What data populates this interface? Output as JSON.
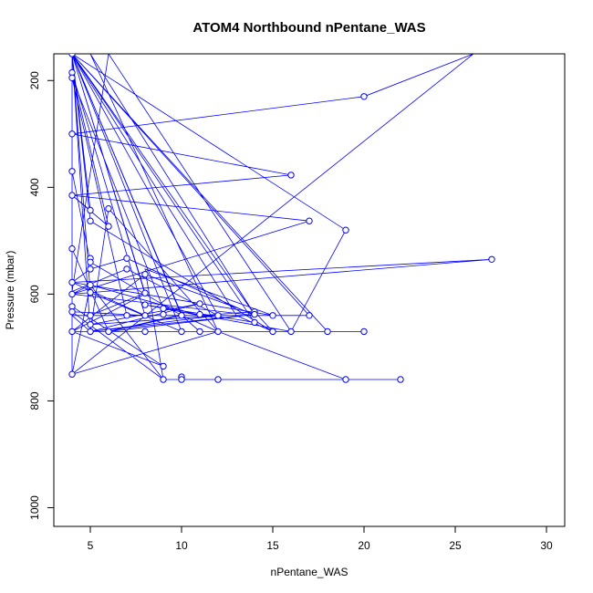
{
  "chart_data": {
    "type": "scatter",
    "title": "ATOM4 Northbound nPentane_WAS",
    "xlabel": "nPentane_WAS",
    "ylabel": "Pressure (mbar)",
    "xlim": [
      3,
      31
    ],
    "ylim": [
      1035,
      150
    ],
    "y_reversed": true,
    "x_ticks": [
      5,
      10,
      15,
      20,
      25,
      30
    ],
    "y_ticks": [
      200,
      400,
      600,
      800,
      1000
    ],
    "grid": false,
    "legend": "none",
    "series_color": "#0000ff",
    "points": [
      [
        4,
        150
      ],
      [
        4,
        185
      ],
      [
        4,
        195
      ],
      [
        4,
        300
      ],
      [
        4,
        370
      ],
      [
        4,
        415
      ],
      [
        4,
        515
      ],
      [
        4,
        578
      ],
      [
        4,
        600
      ],
      [
        4,
        623
      ],
      [
        4,
        633
      ],
      [
        4,
        670
      ],
      [
        4,
        750
      ],
      [
        5,
        443
      ],
      [
        5,
        463
      ],
      [
        5,
        533
      ],
      [
        5,
        540
      ],
      [
        5,
        553
      ],
      [
        5,
        583
      ],
      [
        5,
        597
      ],
      [
        5,
        640
      ],
      [
        5,
        657
      ],
      [
        5,
        670
      ],
      [
        6,
        440
      ],
      [
        6,
        473
      ],
      [
        6,
        670
      ],
      [
        7,
        533
      ],
      [
        7,
        553
      ],
      [
        7,
        640
      ],
      [
        8,
        563
      ],
      [
        8,
        598
      ],
      [
        8,
        620
      ],
      [
        8,
        640
      ],
      [
        8,
        670
      ],
      [
        9,
        627
      ],
      [
        9,
        638
      ],
      [
        9,
        735
      ],
      [
        9,
        760
      ],
      [
        10,
        640
      ],
      [
        10,
        670
      ],
      [
        10,
        755
      ],
      [
        10,
        760
      ],
      [
        11,
        618
      ],
      [
        11,
        638
      ],
      [
        11,
        670
      ],
      [
        12,
        640
      ],
      [
        12,
        670
      ],
      [
        12,
        760
      ],
      [
        14,
        633
      ],
      [
        14,
        638
      ],
      [
        14,
        653
      ],
      [
        15,
        640
      ],
      [
        15,
        670
      ],
      [
        16,
        377
      ],
      [
        16,
        670
      ],
      [
        17,
        463
      ],
      [
        17,
        640
      ],
      [
        18,
        670
      ],
      [
        19,
        480
      ],
      [
        19,
        760
      ],
      [
        20,
        230
      ],
      [
        20,
        670
      ],
      [
        22,
        760
      ],
      [
        27,
        535
      ]
    ],
    "path_x": [
      4,
      5,
      4,
      6,
      4,
      8,
      4,
      27,
      4,
      17,
      4,
      16,
      4,
      20,
      26,
      4,
      12,
      6,
      5,
      4,
      14,
      7,
      5,
      4,
      15,
      8,
      9,
      5,
      4,
      4,
      9,
      4,
      10,
      12,
      19,
      22,
      10,
      9,
      4,
      8,
      11,
      8,
      14,
      4,
      18,
      4,
      20,
      4,
      8,
      4,
      4,
      5,
      11,
      14,
      15,
      16,
      9,
      4,
      7,
      17,
      4,
      5,
      10,
      4,
      14,
      6,
      4,
      4,
      5,
      10,
      12,
      5,
      14,
      4,
      4,
      4,
      14,
      12,
      5,
      11,
      5,
      12,
      4,
      10,
      5,
      8,
      4,
      19,
      16,
      6,
      4,
      7,
      12,
      5,
      4,
      13,
      15,
      5,
      4,
      10,
      6,
      10,
      11,
      5,
      14,
      8,
      4
    ],
    "path_y": [
      150,
      443,
      415,
      473,
      185,
      640,
      578,
      535,
      600,
      463,
      415,
      377,
      300,
      230,
      150,
      750,
      670,
      440,
      670,
      640,
      640,
      533,
      553,
      578,
      640,
      553,
      760,
      583,
      600,
      623,
      735,
      670,
      670,
      670,
      760,
      760,
      760,
      760,
      633,
      640,
      640,
      620,
      653,
      150,
      670,
      670,
      670,
      670,
      600,
      150,
      750,
      583,
      640,
      633,
      670,
      670,
      627,
      195,
      640,
      640,
      150,
      597,
      670,
      150,
      638,
      670,
      515,
      370,
      540,
      640,
      670,
      150,
      638,
      150,
      300,
      600,
      640,
      640,
      657,
      618,
      670,
      640,
      150,
      640,
      640,
      598,
      150,
      480,
      670,
      150,
      595,
      553,
      640,
      670,
      150,
      640,
      670,
      463,
      150,
      638,
      670,
      640,
      670,
      670,
      638,
      563,
      670
    ]
  }
}
